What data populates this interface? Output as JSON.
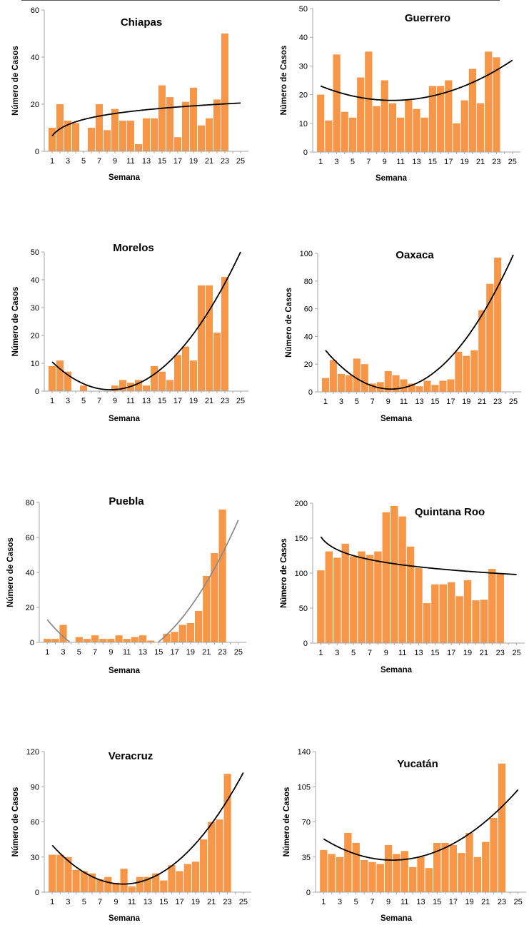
{
  "colors": {
    "bar": "#f79646",
    "trend_black": "#000000",
    "trend_gray": "#8c8c8c",
    "axis": "#a6a6a6"
  },
  "chart_data": [
    {
      "type": "bar",
      "title": "Chiapas",
      "xlabel": "Semana",
      "ylabel": "Número de Casos",
      "xlim": [
        0,
        26
      ],
      "ylim": [
        0,
        60
      ],
      "xticks": [
        1,
        3,
        5,
        7,
        9,
        11,
        13,
        15,
        17,
        19,
        21,
        23,
        25
      ],
      "yticks": [
        0,
        20,
        40,
        60
      ],
      "categories": [
        1,
        2,
        3,
        4,
        5,
        6,
        7,
        8,
        9,
        10,
        11,
        12,
        13,
        14,
        15,
        16,
        17,
        18,
        19,
        20,
        21,
        22,
        23
      ],
      "values": [
        10,
        20,
        13,
        12,
        0,
        10,
        20,
        9,
        18,
        13,
        13,
        3,
        14,
        14,
        28,
        23,
        6,
        21,
        27,
        11,
        14,
        22,
        50
      ],
      "trendline": {
        "type": "logarithmic",
        "color": "black",
        "x_range": [
          1,
          25
        ],
        "points": [
          [
            1,
            6.5
          ],
          [
            25,
            20.5
          ]
        ]
      }
    },
    {
      "type": "bar",
      "title": "Guerrero",
      "xlabel": "Semana",
      "ylabel": "Número de Casos",
      "xlim": [
        0,
        26
      ],
      "ylim": [
        0,
        50
      ],
      "xticks": [
        1,
        3,
        5,
        7,
        9,
        11,
        13,
        15,
        17,
        19,
        21,
        23,
        25
      ],
      "yticks": [
        0,
        10,
        20,
        30,
        40,
        50
      ],
      "categories": [
        1,
        2,
        3,
        4,
        5,
        6,
        7,
        8,
        9,
        10,
        11,
        12,
        13,
        14,
        15,
        16,
        17,
        18,
        19,
        20,
        21,
        22,
        23
      ],
      "values": [
        20,
        11,
        34,
        14,
        12,
        26,
        35,
        16,
        25,
        17,
        12,
        18,
        15,
        12,
        23,
        23,
        25,
        10,
        18,
        29,
        17,
        35,
        33
      ],
      "trendline": {
        "type": "polynomial",
        "color": "black",
        "x_range": [
          1,
          25
        ],
        "points": [
          [
            1,
            23
          ],
          [
            10,
            18
          ],
          [
            25,
            32
          ]
        ]
      }
    },
    {
      "type": "bar",
      "title": "Morelos",
      "xlabel": "Semana",
      "ylabel": "Número de Casos",
      "xlim": [
        0,
        26
      ],
      "ylim": [
        0,
        50
      ],
      "xticks": [
        1,
        3,
        5,
        7,
        9,
        11,
        13,
        15,
        17,
        19,
        21,
        23,
        25
      ],
      "yticks": [
        0,
        10,
        20,
        30,
        40,
        50
      ],
      "categories": [
        1,
        2,
        3,
        4,
        5,
        6,
        7,
        8,
        9,
        10,
        11,
        12,
        13,
        14,
        15,
        16,
        17,
        18,
        19,
        20,
        21,
        22,
        23
      ],
      "values": [
        9,
        11,
        7,
        0,
        2,
        0,
        0,
        0,
        2,
        4,
        3,
        4,
        2,
        9,
        7,
        4,
        13,
        16,
        11,
        38,
        38,
        21,
        41
      ],
      "trendline": {
        "type": "polynomial",
        "color": "black",
        "x_range": [
          1,
          25
        ],
        "points": [
          [
            1,
            10.5
          ],
          [
            8.5,
            0.5
          ],
          [
            25,
            50
          ]
        ]
      }
    },
    {
      "type": "bar",
      "title": "Oaxaca",
      "xlabel": "Semana",
      "ylabel": "Número de Casos",
      "xlim": [
        0,
        26
      ],
      "ylim": [
        0,
        100
      ],
      "xticks": [
        1,
        3,
        5,
        7,
        9,
        11,
        13,
        15,
        17,
        19,
        21,
        23,
        25
      ],
      "yticks": [
        0,
        20,
        40,
        60,
        80,
        100
      ],
      "categories": [
        1,
        2,
        3,
        4,
        5,
        6,
        7,
        8,
        9,
        10,
        11,
        12,
        13,
        14,
        15,
        16,
        17,
        18,
        19,
        20,
        21,
        22,
        23
      ],
      "values": [
        10,
        23,
        13,
        12,
        24,
        20,
        6,
        7,
        15,
        12,
        9,
        6,
        4,
        8,
        5,
        8,
        9,
        29,
        26,
        30,
        59,
        78,
        97
      ],
      "trendline": {
        "type": "polynomial",
        "color": "black",
        "x_range": [
          1,
          25
        ],
        "points": [
          [
            1,
            30
          ],
          [
            9.5,
            2
          ],
          [
            25,
            99
          ]
        ]
      }
    },
    {
      "type": "bar",
      "title": "Puebla",
      "xlabel": "Semana",
      "ylabel": "Número de Casos",
      "xlim": [
        0,
        26
      ],
      "ylim": [
        0,
        80
      ],
      "xticks": [
        1,
        3,
        5,
        7,
        9,
        11,
        13,
        15,
        17,
        19,
        21,
        23,
        25
      ],
      "yticks": [
        0,
        20,
        40,
        60,
        80
      ],
      "categories": [
        1,
        2,
        3,
        4,
        5,
        6,
        7,
        8,
        9,
        10,
        11,
        12,
        13,
        14,
        15,
        16,
        17,
        18,
        19,
        20,
        21,
        22,
        23
      ],
      "values": [
        2,
        2,
        10,
        0,
        3,
        2,
        4,
        2,
        2,
        4,
        2,
        3,
        4,
        1,
        0,
        5,
        6,
        10,
        11,
        18,
        38,
        51,
        76
      ],
      "trendline": {
        "type": "polynomial",
        "color": "gray",
        "x_range": [
          1,
          25
        ],
        "points": [
          [
            1,
            13
          ],
          [
            9.5,
            -10
          ],
          [
            25,
            70
          ]
        ]
      }
    },
    {
      "type": "bar",
      "title": "Quintana Roo",
      "xlabel": "Semana",
      "ylabel": "Número de Casos",
      "xlim": [
        0,
        26
      ],
      "ylim": [
        0,
        200
      ],
      "xticks": [
        1,
        3,
        5,
        7,
        9,
        11,
        13,
        15,
        17,
        19,
        21,
        23,
        25
      ],
      "yticks": [
        0,
        50,
        100,
        150,
        200
      ],
      "categories": [
        1,
        2,
        3,
        4,
        5,
        6,
        7,
        8,
        9,
        10,
        11,
        12,
        13,
        14,
        15,
        16,
        17,
        18,
        19,
        20,
        21,
        22,
        23
      ],
      "values": [
        104,
        131,
        122,
        142,
        124,
        131,
        126,
        131,
        187,
        196,
        181,
        138,
        107,
        57,
        84,
        84,
        87,
        67,
        90,
        61,
        62,
        106,
        100
      ],
      "trendline": {
        "type": "logarithmic",
        "color": "black",
        "x_range": [
          1,
          25
        ],
        "points": [
          [
            1,
            152
          ],
          [
            25,
            98
          ]
        ]
      }
    },
    {
      "type": "bar",
      "title": "Veracruz",
      "xlabel": "Semana",
      "ylabel": "Número de Casos",
      "xlim": [
        0,
        26
      ],
      "ylim": [
        0,
        120
      ],
      "xticks": [
        1,
        3,
        5,
        7,
        9,
        11,
        13,
        15,
        17,
        19,
        21,
        23,
        25
      ],
      "yticks": [
        0,
        30,
        60,
        90,
        120
      ],
      "categories": [
        1,
        2,
        3,
        4,
        5,
        6,
        7,
        8,
        9,
        10,
        11,
        12,
        13,
        14,
        15,
        16,
        17,
        18,
        19,
        20,
        21,
        22,
        23
      ],
      "values": [
        32,
        32,
        30,
        19,
        18,
        16,
        11,
        13,
        8,
        20,
        5,
        13,
        13,
        16,
        10,
        23,
        18,
        24,
        26,
        45,
        60,
        62,
        101
      ],
      "trendline": {
        "type": "polynomial",
        "color": "black",
        "x_range": [
          1,
          25
        ],
        "points": [
          [
            1,
            40
          ],
          [
            9.5,
            7
          ],
          [
            25,
            102
          ]
        ]
      }
    },
    {
      "type": "bar",
      "title": "Yucatán",
      "xlabel": "Semana",
      "ylabel": "Número de Casos",
      "xlim": [
        0,
        26
      ],
      "ylim": [
        0,
        140
      ],
      "xticks": [
        1,
        3,
        5,
        7,
        9,
        11,
        13,
        15,
        17,
        19,
        21,
        23,
        25
      ],
      "yticks": [
        0,
        35,
        70,
        105,
        140
      ],
      "categories": [
        1,
        2,
        3,
        4,
        5,
        6,
        7,
        8,
        9,
        10,
        11,
        12,
        13,
        14,
        15,
        16,
        17,
        18,
        19,
        20,
        21,
        22,
        23
      ],
      "values": [
        42,
        38,
        35,
        59,
        49,
        32,
        30,
        28,
        47,
        38,
        41,
        25,
        35,
        24,
        49,
        49,
        47,
        39,
        59,
        35,
        50,
        74,
        128
      ],
      "trendline": {
        "type": "polynomial",
        "color": "black",
        "x_range": [
          1,
          25
        ],
        "points": [
          [
            1,
            53
          ],
          [
            10,
            32
          ],
          [
            25,
            102
          ]
        ]
      }
    }
  ]
}
